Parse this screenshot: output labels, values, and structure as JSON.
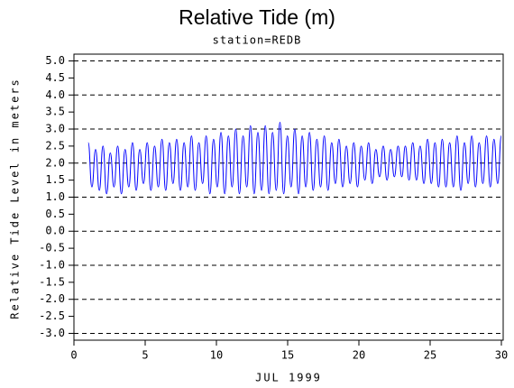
{
  "chart_data": {
    "type": "line",
    "title": "Relative Tide (m)",
    "subtitle": "station=REDB",
    "x_label": "JUL 1999",
    "y_label": "Relative Tide Level in meters",
    "xlim": [
      0,
      30
    ],
    "xticks": [
      0,
      5,
      10,
      15,
      20,
      25,
      30
    ],
    "ylim": [
      -3.2,
      5.2
    ],
    "yticks": [
      {
        "value": 5,
        "label": "5.0"
      },
      {
        "value": 4.5,
        "label": "4.5"
      },
      {
        "value": 4,
        "label": "4.0"
      },
      {
        "value": 3.5,
        "label": "3.5"
      },
      {
        "value": 3,
        "label": "3.0"
      },
      {
        "value": 2.5,
        "label": "2.5"
      },
      {
        "value": 2,
        "label": "2.0"
      },
      {
        "value": 1.5,
        "label": "1.5"
      },
      {
        "value": 1,
        "label": "1.0"
      },
      {
        "value": 0.5,
        "label": "0.5"
      },
      {
        "value": 0,
        "label": "0.0"
      },
      {
        "value": -0.5,
        "label": "-0.5"
      },
      {
        "value": -1,
        "label": "-1.0"
      },
      {
        "value": -1.5,
        "label": "-1.5"
      },
      {
        "value": -2,
        "label": "-2.0"
      },
      {
        "value": -2.5,
        "label": "-2.5"
      },
      {
        "value": -3,
        "label": "-3.0"
      }
    ],
    "grid": "integer-ticks",
    "x": [
      1.0,
      1.26,
      1.52,
      1.78,
      2.04,
      2.29,
      2.55,
      2.81,
      3.07,
      3.33,
      3.59,
      3.85,
      4.11,
      4.37,
      4.62,
      4.88,
      5.14,
      5.4,
      5.66,
      5.92,
      6.18,
      6.44,
      6.7,
      6.95,
      7.21,
      7.47,
      7.73,
      7.99,
      8.25,
      8.51,
      8.77,
      9.03,
      9.28,
      9.54,
      9.8,
      10.06,
      10.32,
      10.58,
      10.84,
      11.1,
      11.36,
      11.61,
      11.87,
      12.13,
      12.39,
      12.65,
      12.91,
      13.17,
      13.43,
      13.69,
      13.94,
      14.2,
      14.46,
      14.72,
      14.98,
      15.24,
      15.5,
      15.76,
      16.02,
      16.27,
      16.53,
      16.79,
      17.05,
      17.31,
      17.57,
      17.83,
      18.09,
      18.35,
      18.6,
      18.86,
      19.12,
      19.38,
      19.64,
      19.9,
      20.16,
      20.42,
      20.68,
      20.93,
      21.19,
      21.45,
      21.71,
      21.97,
      22.23,
      22.49,
      22.75,
      23.01,
      23.26,
      23.52,
      23.78,
      24.04,
      24.3,
      24.56,
      24.82,
      25.08,
      25.34,
      25.59,
      25.85,
      26.11,
      26.37,
      26.63,
      26.89,
      27.15,
      27.41,
      27.67,
      27.92,
      28.18,
      28.44,
      28.7,
      28.96,
      29.22,
      29.48,
      29.74,
      30.0
    ],
    "series": [
      {
        "color": "#0000ff",
        "values": [
          2.6,
          1.3,
          2.4,
          1.2,
          2.5,
          1.1,
          2.3,
          1.3,
          2.5,
          1.1,
          2.4,
          1.3,
          2.6,
          1.2,
          2.4,
          1.4,
          2.6,
          1.2,
          2.5,
          1.3,
          2.7,
          1.2,
          2.6,
          1.4,
          2.7,
          1.2,
          2.6,
          1.3,
          2.8,
          1.2,
          2.6,
          1.4,
          2.8,
          1.1,
          2.7,
          1.3,
          2.9,
          1.1,
          2.8,
          1.3,
          3.0,
          1.1,
          2.8,
          1.3,
          3.1,
          1.1,
          2.9,
          1.2,
          3.1,
          1.1,
          2.9,
          1.2,
          3.2,
          1.1,
          2.8,
          1.3,
          3.0,
          1.1,
          2.8,
          1.3,
          2.9,
          1.2,
          2.7,
          1.3,
          2.8,
          1.2,
          2.6,
          1.4,
          2.7,
          1.3,
          2.5,
          1.4,
          2.6,
          1.3,
          2.5,
          1.5,
          2.6,
          1.4,
          2.4,
          1.6,
          2.5,
          1.5,
          2.4,
          1.6,
          2.5,
          1.6,
          2.5,
          1.5,
          2.6,
          1.5,
          2.5,
          1.4,
          2.7,
          1.4,
          2.6,
          1.3,
          2.7,
          1.3,
          2.6,
          1.3,
          2.8,
          1.2,
          2.6,
          1.4,
          2.8,
          1.3,
          2.6,
          1.4,
          2.8,
          1.3,
          2.7,
          1.4,
          2.8
        ]
      }
    ]
  }
}
